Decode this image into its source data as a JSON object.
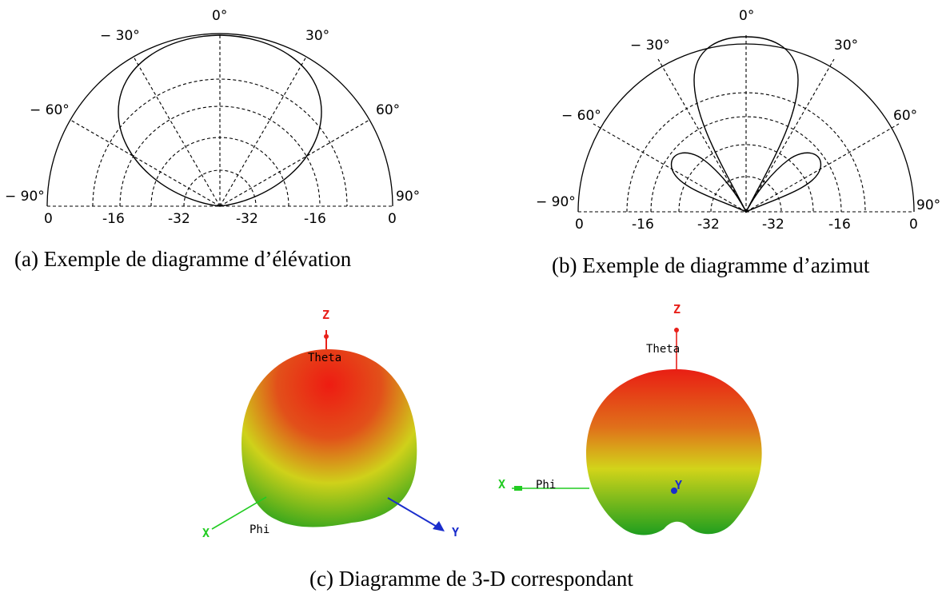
{
  "elevation": {
    "angle_labels": {
      "top": "0°",
      "m30": "− 30°",
      "p30": "30°",
      "m60": "− 60°",
      "p60": "60°",
      "m90": "− 90°",
      "p90": "90°"
    },
    "range_labels": [
      "0",
      "-16",
      "-32",
      "-32",
      "-16",
      "0"
    ],
    "caption": "(a)  Exemple de diagramme d’élévation"
  },
  "azimuth": {
    "angle_labels": {
      "top": "0°",
      "m30": "− 30°",
      "p30": "30°",
      "m60": "− 60°",
      "p60": "60°",
      "m90": "− 90°",
      "p90": "90°"
    },
    "range_labels": [
      "0",
      "-16",
      "-32",
      "-32",
      "-16",
      "0"
    ],
    "caption": "(b)  Exemple de diagramme d’azimut"
  },
  "view3d": {
    "left": {
      "z": "Z",
      "theta": "Theta",
      "x": "X",
      "phi": "Phi",
      "y": "Y"
    },
    "right": {
      "z": "Z",
      "theta": "Theta",
      "x": "X",
      "phi": "Phi",
      "y": "Y"
    },
    "caption": "(c)  Diagramme de 3-D correspondant"
  },
  "colors": {
    "z_axis": "#e8201a",
    "x_axis": "#22cc22",
    "y_axis": "#1a2dcc",
    "lobe_top": "#e8201a",
    "lobe_mid": "#d6d21a",
    "lobe_bottom": "#22a81c"
  }
}
